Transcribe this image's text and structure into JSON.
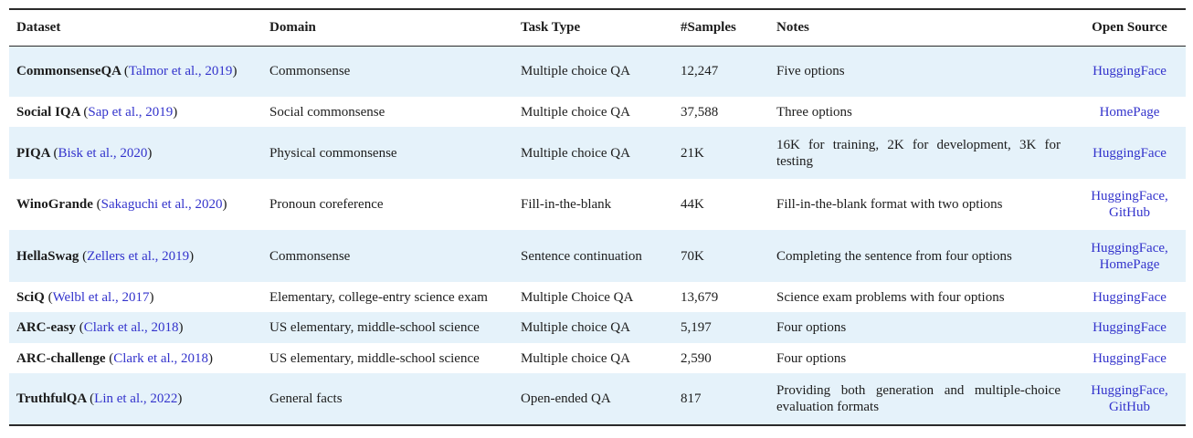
{
  "table": {
    "citation_open": "(",
    "citation_close": ")",
    "columns": [
      {
        "label": "Dataset"
      },
      {
        "label": "Domain"
      },
      {
        "label": "Task Type"
      },
      {
        "label": "#Samples"
      },
      {
        "label": "Notes"
      },
      {
        "label": "Open Source"
      }
    ],
    "rows": [
      {
        "dataset_name": "CommonsenseQA",
        "citation": "Talmor et al., 2019",
        "domain": "Commonsense",
        "task_type": "Multiple choice QA",
        "samples": "12,247",
        "notes": "Five options",
        "open_source": [
          "HuggingFace"
        ],
        "highlighted": true
      },
      {
        "dataset_name": "Social IQA",
        "citation": "Sap et al., 2019",
        "domain": "Social commonsense",
        "task_type": "Multiple choice QA",
        "samples": "37,588",
        "notes": "Three options",
        "open_source": [
          "HomePage"
        ],
        "highlighted": false
      },
      {
        "dataset_name": "PIQA",
        "citation": "Bisk et al., 2020",
        "domain": "Physical commonsense",
        "task_type": "Multiple choice QA",
        "samples": "21K",
        "notes": "16K for training, 2K for development, 3K for testing",
        "open_source": [
          "HuggingFace"
        ],
        "highlighted": true
      },
      {
        "dataset_name": "WinoGrande",
        "citation": "Sakaguchi et al., 2020",
        "domain": "Pronoun coreference",
        "task_type": "Fill-in-the-blank",
        "samples": "44K",
        "notes": "Fill-in-the-blank format with two options",
        "open_source": [
          "HuggingFace",
          "GitHub"
        ],
        "highlighted": false
      },
      {
        "dataset_name": "HellaSwag",
        "citation": "Zellers et al., 2019",
        "domain": "Commonsense",
        "task_type": "Sentence continuation",
        "samples": "70K",
        "notes": "Completing the sentence from four options",
        "open_source": [
          "HuggingFace",
          "HomePage"
        ],
        "highlighted": true
      },
      {
        "dataset_name": "SciQ",
        "citation": "Welbl et al., 2017",
        "domain": "Elementary, college-entry science exam",
        "task_type": "Multiple Choice QA",
        "samples": "13,679",
        "notes": "Science exam problems with four options",
        "open_source": [
          "HuggingFace"
        ],
        "highlighted": false
      },
      {
        "dataset_name": "ARC-easy",
        "citation": "Clark et al., 2018",
        "domain": "US elementary, middle-school science",
        "task_type": "Multiple choice QA",
        "samples": "5,197",
        "notes": "Four options",
        "open_source": [
          "HuggingFace"
        ],
        "highlighted": true
      },
      {
        "dataset_name": "ARC-challenge",
        "citation": "Clark et al., 2018",
        "domain": "US elementary, middle-school science",
        "task_type": "Multiple choice QA",
        "samples": "2,590",
        "notes": "Four options",
        "open_source": [
          "HuggingFace"
        ],
        "highlighted": false
      },
      {
        "dataset_name": "TruthfulQA",
        "citation": "Lin et al., 2022",
        "domain": "General facts",
        "task_type": "Open-ended QA",
        "samples": "817",
        "notes": "Providing both generation and multiple-choice evaluation formats",
        "open_source": [
          "HuggingFace",
          "GitHub"
        ],
        "highlighted": true
      }
    ]
  },
  "colors": {
    "row_highlight": "#e5f2fa",
    "link_blue": "#3333cc",
    "text": "#1c1c1c",
    "rule": "#2a2a2a"
  }
}
